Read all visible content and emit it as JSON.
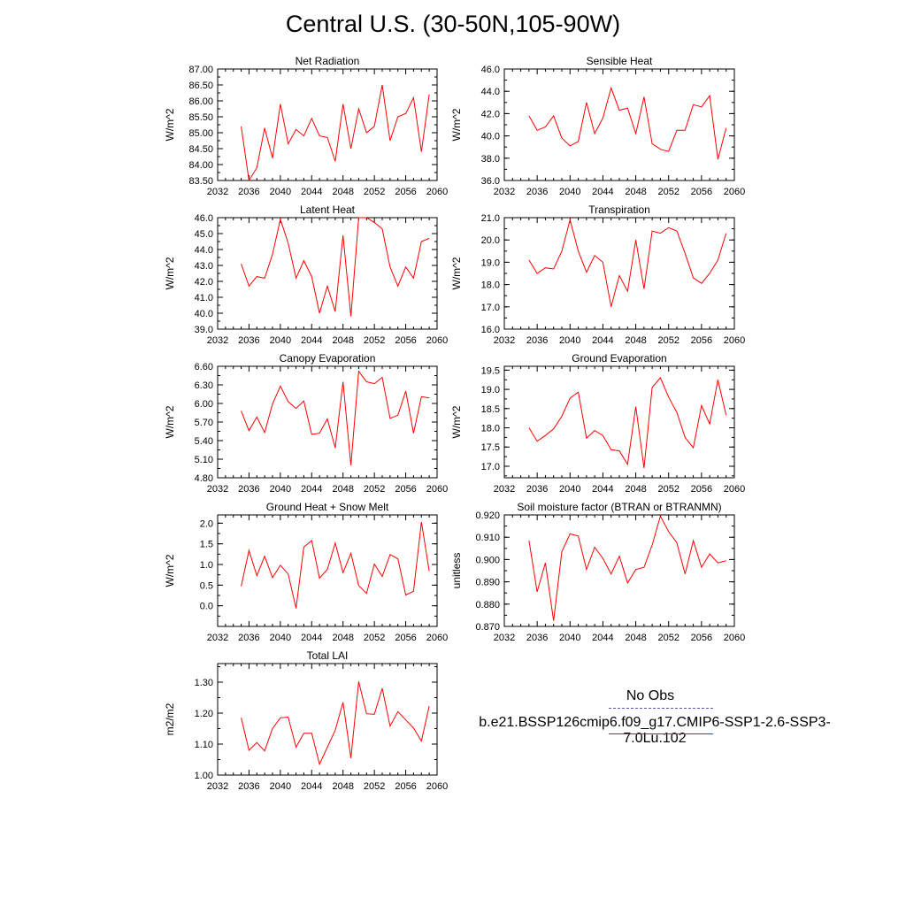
{
  "title": "Central U.S. (30-50N,105-90W)",
  "colors": {
    "model": "#ff0000",
    "obs": "#5a5aa8",
    "axis": "#000000"
  },
  "legend": {
    "obs_label": "No Obs",
    "model_label": "b.e21.BSSP126cmip6.f09_g17.CMIP6-SSP1-2.6-SSP3-7.0Lu.102"
  },
  "chart_data": [
    {
      "type": "line",
      "title": "Net Radiation",
      "ylabel": "W/m^2",
      "xlim": [
        2032,
        2060
      ],
      "ylim": [
        83.5,
        87.0
      ],
      "xticks": [
        "2032",
        "2036",
        "2040",
        "2044",
        "2048",
        "2052",
        "2056",
        "2060"
      ],
      "yticks": [
        "83.50",
        "84.00",
        "84.50",
        "85.00",
        "85.50",
        "86.00",
        "86.50",
        "87.00"
      ],
      "series": [
        {
          "x": [
            2035,
            2036,
            2037,
            2038,
            2039,
            2040,
            2041,
            2042,
            2043,
            2044,
            2045,
            2046,
            2047,
            2048,
            2049,
            2050,
            2051,
            2052,
            2053,
            2054,
            2055,
            2056,
            2057,
            2058,
            2059
          ],
          "y": [
            85.2,
            83.5,
            83.9,
            85.15,
            84.2,
            85.9,
            84.65,
            85.1,
            84.9,
            85.45,
            84.9,
            84.85,
            84.1,
            85.9,
            84.5,
            85.75,
            85.0,
            85.2,
            86.5,
            84.75,
            85.5,
            85.6,
            86.1,
            84.4,
            86.2
          ]
        }
      ]
    },
    {
      "type": "line",
      "title": "Sensible Heat",
      "ylabel": "W/m^2",
      "xlim": [
        2032,
        2060
      ],
      "ylim": [
        36.0,
        46.0
      ],
      "xticks": [
        "2032",
        "2036",
        "2040",
        "2044",
        "2048",
        "2052",
        "2056",
        "2060"
      ],
      "yticks": [
        "36.0",
        "38.0",
        "40.0",
        "42.0",
        "44.0",
        "46.0"
      ],
      "series": [
        {
          "x": [
            2035,
            2036,
            2037,
            2038,
            2039,
            2040,
            2041,
            2042,
            2043,
            2044,
            2045,
            2046,
            2047,
            2048,
            2049,
            2050,
            2051,
            2052,
            2053,
            2054,
            2055,
            2056,
            2057,
            2058,
            2059
          ],
          "y": [
            41.8,
            40.5,
            40.8,
            41.8,
            39.8,
            39.1,
            39.5,
            43.0,
            40.2,
            41.6,
            44.3,
            42.3,
            42.5,
            40.2,
            43.5,
            39.3,
            38.8,
            38.6,
            40.5,
            40.5,
            42.8,
            42.6,
            43.6,
            37.9,
            40.7
          ]
        }
      ]
    },
    {
      "type": "line",
      "title": "Latent Heat",
      "ylabel": "W/m^2",
      "xlim": [
        2032,
        2060
      ],
      "ylim": [
        39.0,
        46.0
      ],
      "xticks": [
        "2032",
        "2036",
        "2040",
        "2044",
        "2048",
        "2052",
        "2056",
        "2060"
      ],
      "yticks": [
        "39.0",
        "40.0",
        "41.0",
        "42.0",
        "43.0",
        "44.0",
        "45.0",
        "46.0"
      ],
      "series": [
        {
          "x": [
            2035,
            2036,
            2037,
            2038,
            2039,
            2040,
            2041,
            2042,
            2043,
            2044,
            2045,
            2046,
            2047,
            2048,
            2049,
            2050,
            2051,
            2052,
            2053,
            2054,
            2055,
            2056,
            2057,
            2058,
            2059
          ],
          "y": [
            43.1,
            41.7,
            42.3,
            42.2,
            43.7,
            45.9,
            44.4,
            42.2,
            43.3,
            42.3,
            40.0,
            41.7,
            40.1,
            44.9,
            39.8,
            46.0,
            46.0,
            45.7,
            45.3,
            42.9,
            41.7,
            42.9,
            42.2,
            44.5,
            44.7
          ]
        }
      ]
    },
    {
      "type": "line",
      "title": "Transpiration",
      "ylabel": "W/m^2",
      "xlim": [
        2032,
        2060
      ],
      "ylim": [
        16.0,
        21.0
      ],
      "xticks": [
        "2032",
        "2036",
        "2040",
        "2044",
        "2048",
        "2052",
        "2056",
        "2060"
      ],
      "yticks": [
        "16.0",
        "17.0",
        "18.0",
        "19.0",
        "20.0",
        "21.0"
      ],
      "series": [
        {
          "x": [
            2035,
            2036,
            2037,
            2038,
            2039,
            2040,
            2041,
            2042,
            2043,
            2044,
            2045,
            2046,
            2047,
            2048,
            2049,
            2050,
            2051,
            2052,
            2053,
            2054,
            2055,
            2056,
            2057,
            2058,
            2059
          ],
          "y": [
            19.1,
            18.5,
            18.75,
            18.7,
            19.5,
            20.9,
            19.5,
            18.55,
            19.3,
            19.0,
            17.0,
            18.4,
            17.7,
            20.0,
            17.8,
            20.4,
            20.3,
            20.55,
            20.4,
            19.4,
            18.3,
            18.05,
            18.5,
            19.1,
            20.3
          ]
        }
      ]
    },
    {
      "type": "line",
      "title": "Canopy Evaporation",
      "ylabel": "W/m^2",
      "xlim": [
        2032,
        2060
      ],
      "ylim": [
        4.8,
        6.6
      ],
      "xticks": [
        "2032",
        "2036",
        "2040",
        "2044",
        "2048",
        "2052",
        "2056",
        "2060"
      ],
      "yticks": [
        "4.80",
        "5.10",
        "5.40",
        "5.70",
        "6.00",
        "6.30",
        "6.60"
      ],
      "series": [
        {
          "x": [
            2035,
            2036,
            2037,
            2038,
            2039,
            2040,
            2041,
            2042,
            2043,
            2044,
            2045,
            2046,
            2047,
            2048,
            2049,
            2050,
            2051,
            2052,
            2053,
            2054,
            2055,
            2056,
            2057,
            2058,
            2059
          ],
          "y": [
            5.88,
            5.56,
            5.78,
            5.53,
            5.99,
            6.28,
            6.03,
            5.92,
            6.04,
            5.5,
            5.52,
            5.75,
            5.28,
            6.35,
            5.0,
            6.52,
            6.35,
            6.32,
            6.42,
            5.76,
            5.81,
            6.2,
            5.52,
            6.11,
            6.09
          ]
        }
      ]
    },
    {
      "type": "line",
      "title": "Ground Evaporation",
      "ylabel": "W/m^2",
      "xlim": [
        2032,
        2060
      ],
      "ylim": [
        16.7,
        19.6
      ],
      "xticks": [
        "2032",
        "2036",
        "2040",
        "2044",
        "2048",
        "2052",
        "2056",
        "2060"
      ],
      "yticks": [
        "17.0",
        "17.5",
        "18.0",
        "18.5",
        "19.0",
        "19.5"
      ],
      "series": [
        {
          "x": [
            2035,
            2036,
            2037,
            2038,
            2039,
            2040,
            2041,
            2042,
            2043,
            2044,
            2045,
            2046,
            2047,
            2048,
            2049,
            2050,
            2051,
            2052,
            2053,
            2054,
            2055,
            2056,
            2057,
            2058,
            2059
          ],
          "y": [
            18.0,
            17.65,
            17.8,
            17.97,
            18.3,
            18.77,
            18.93,
            17.73,
            17.93,
            17.8,
            17.43,
            17.4,
            17.05,
            18.55,
            16.95,
            19.05,
            19.3,
            18.8,
            18.4,
            17.75,
            17.48,
            18.58,
            18.1,
            19.25,
            18.33
          ]
        }
      ]
    },
    {
      "type": "line",
      "title": "Ground Heat + Snow Melt",
      "ylabel": "W/m^2",
      "xlim": [
        2032,
        2060
      ],
      "ylim": [
        -0.5,
        2.2
      ],
      "xticks": [
        "2032",
        "2036",
        "2040",
        "2044",
        "2048",
        "2052",
        "2056",
        "2060"
      ],
      "yticks": [
        "0.0",
        "0.5",
        "1.0",
        "1.5",
        "2.0"
      ],
      "series": [
        {
          "x": [
            2035,
            2036,
            2037,
            2038,
            2039,
            2040,
            2041,
            2042,
            2043,
            2044,
            2045,
            2046,
            2047,
            2048,
            2049,
            2050,
            2051,
            2052,
            2053,
            2054,
            2055,
            2056,
            2057,
            2058,
            2059
          ],
          "y": [
            0.47,
            1.34,
            0.73,
            1.2,
            0.68,
            0.98,
            0.77,
            -0.06,
            1.42,
            1.58,
            0.67,
            0.88,
            1.52,
            0.8,
            1.27,
            0.49,
            0.3,
            1.01,
            0.71,
            1.24,
            1.14,
            0.26,
            0.35,
            2.03,
            0.84
          ]
        }
      ]
    },
    {
      "type": "line",
      "title": "Soil moisture factor (BTRAN or BTRANMN)",
      "ylabel": "unitless",
      "xlim": [
        2032,
        2060
      ],
      "ylim": [
        0.87,
        0.92
      ],
      "xticks": [
        "2032",
        "2036",
        "2040",
        "2044",
        "2048",
        "2052",
        "2056",
        "2060"
      ],
      "yticks": [
        "0.870",
        "0.880",
        "0.890",
        "0.900",
        "0.910",
        "0.920"
      ],
      "series": [
        {
          "x": [
            2035,
            2036,
            2037,
            2038,
            2039,
            2040,
            2041,
            2042,
            2043,
            2044,
            2045,
            2046,
            2047,
            2048,
            2049,
            2050,
            2051,
            2052,
            2053,
            2054,
            2055,
            2056,
            2057,
            2058,
            2059
          ],
          "y": [
            0.9085,
            0.8855,
            0.8985,
            0.8725,
            0.9035,
            0.9115,
            0.9105,
            0.8955,
            0.9055,
            0.9005,
            0.8935,
            0.9015,
            0.8895,
            0.8955,
            0.8965,
            0.9065,
            0.9195,
            0.9125,
            0.9075,
            0.8935,
            0.9085,
            0.8965,
            0.9025,
            0.8985,
            0.8995
          ]
        }
      ]
    },
    {
      "type": "line",
      "title": "Total LAI",
      "ylabel": "m2/m2",
      "xlim": [
        2032,
        2060
      ],
      "ylim": [
        1.0,
        1.36
      ],
      "xticks": [
        "2032",
        "2036",
        "2040",
        "2044",
        "2048",
        "2052",
        "2056",
        "2060"
      ],
      "yticks": [
        "1.00",
        "1.10",
        "1.20",
        "1.30"
      ],
      "series": [
        {
          "x": [
            2035,
            2036,
            2037,
            2038,
            2039,
            2040,
            2041,
            2042,
            2043,
            2044,
            2045,
            2046,
            2047,
            2048,
            2049,
            2050,
            2051,
            2052,
            2053,
            2054,
            2055,
            2056,
            2057,
            2058,
            2059
          ],
          "y": [
            1.185,
            1.08,
            1.105,
            1.078,
            1.15,
            1.185,
            1.187,
            1.09,
            1.135,
            1.135,
            1.035,
            1.09,
            1.145,
            1.235,
            1.055,
            1.302,
            1.198,
            1.196,
            1.28,
            1.158,
            1.205,
            1.178,
            1.152,
            1.11,
            1.223
          ]
        }
      ]
    }
  ]
}
